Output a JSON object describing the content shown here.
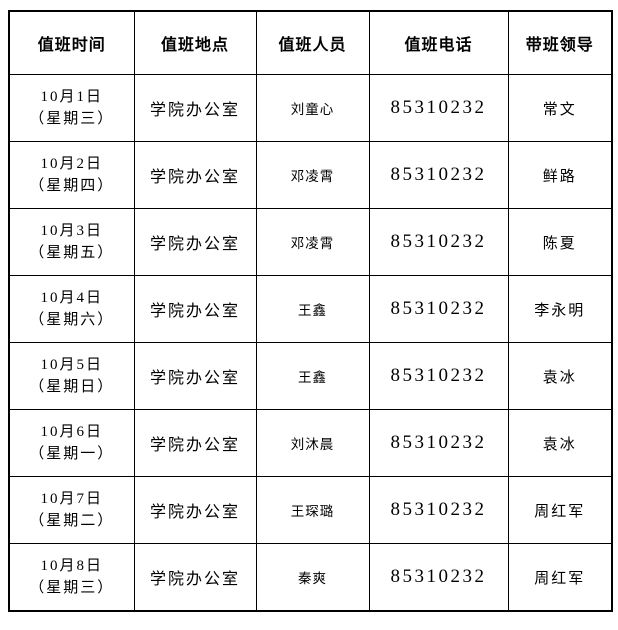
{
  "page": {
    "background_color": "#ffffff",
    "border_color": "#000000",
    "text_color": "#000000"
  },
  "table": {
    "headers": [
      {
        "label": "值班时间"
      },
      {
        "label": "值班地点"
      },
      {
        "label": "值班人员"
      },
      {
        "label": "值班电话"
      },
      {
        "label": "带班领导"
      }
    ],
    "rows": [
      {
        "date": "10月1日",
        "weekday": "（星期三）",
        "location": "学院办公室",
        "person": "刘童心",
        "phone": "85310232",
        "leader": "常文"
      },
      {
        "date": "10月2日",
        "weekday": "（星期四）",
        "location": "学院办公室",
        "person": "邓凌霄",
        "phone": "85310232",
        "leader": "鲜路"
      },
      {
        "date": "10月3日",
        "weekday": "（星期五）",
        "location": "学院办公室",
        "person": "邓凌霄",
        "phone": "85310232",
        "leader": "陈夏"
      },
      {
        "date": "10月4日",
        "weekday": "（星期六）",
        "location": "学院办公室",
        "person": "王鑫",
        "phone": "85310232",
        "leader": "李永明"
      },
      {
        "date": "10月5日",
        "weekday": "（星期日）",
        "location": "学院办公室",
        "person": "王鑫",
        "phone": "85310232",
        "leader": "袁冰"
      },
      {
        "date": "10月6日",
        "weekday": "（星期一）",
        "location": "学院办公室",
        "person": "刘沐晨",
        "phone": "85310232",
        "leader": "袁冰"
      },
      {
        "date": "10月7日",
        "weekday": "（星期二）",
        "location": "学院办公室",
        "person": "王琛璐",
        "phone": "85310232",
        "leader": "周红军"
      },
      {
        "date": "10月8日",
        "weekday": "（星期三）",
        "location": "学院办公室",
        "person": "秦爽",
        "phone": "85310232",
        "leader": "周红军"
      }
    ]
  }
}
